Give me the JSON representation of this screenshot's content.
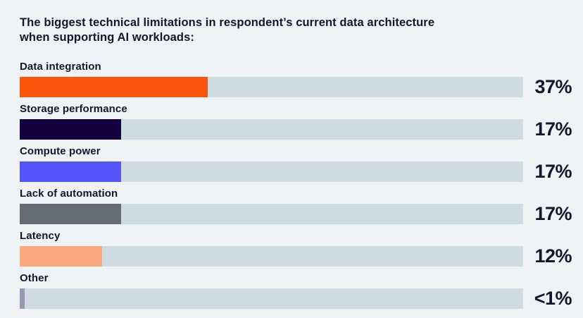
{
  "title": {
    "line1": "The biggest technical limitations in respondent’s current data architecture",
    "line2": "when supporting AI workloads:",
    "full": "The biggest technical limitations in respondent’s current data architecture when supporting AI workloads:"
  },
  "colors": {
    "background": "#EFF3F6",
    "track": "#CEDBE1",
    "text": "#16152E"
  },
  "chart_data": {
    "type": "bar",
    "orientation": "horizontal",
    "title": "The biggest technical limitations in respondent’s current data architecture when supporting AI workloads:",
    "categories": [
      "Data integration",
      "Storage performance",
      "Compute power",
      "Lack of automation",
      "Latency",
      "Other"
    ],
    "values": [
      37,
      17,
      17,
      17,
      12,
      0.5
    ],
    "value_labels": [
      "37%",
      "17%",
      "17%",
      "17%",
      "12%",
      "<1%"
    ],
    "xlim": [
      0,
      100
    ],
    "grid": false,
    "legend": false,
    "rows": [
      {
        "label": "Data integration",
        "value": "37%",
        "numeric": 37,
        "color": "#FB550D",
        "bar_display_pct": 37.3
      },
      {
        "label": "Storage performance",
        "value": "17%",
        "numeric": 17,
        "color": "#150040",
        "bar_display_pct": 20.1
      },
      {
        "label": "Compute power",
        "value": "17%",
        "numeric": 17,
        "color": "#5453F8",
        "bar_display_pct": 20.1
      },
      {
        "label": "Lack of automation",
        "value": "17%",
        "numeric": 17,
        "color": "#656B72",
        "bar_display_pct": 20.1
      },
      {
        "label": "Latency",
        "value": "12%",
        "numeric": 12,
        "color": "#FCA682",
        "bar_display_pct": 16.3
      },
      {
        "label": "Other",
        "value": "<1%",
        "numeric": 0.5,
        "color": "#9E97B3",
        "bar_display_pct": 1.0
      }
    ]
  }
}
